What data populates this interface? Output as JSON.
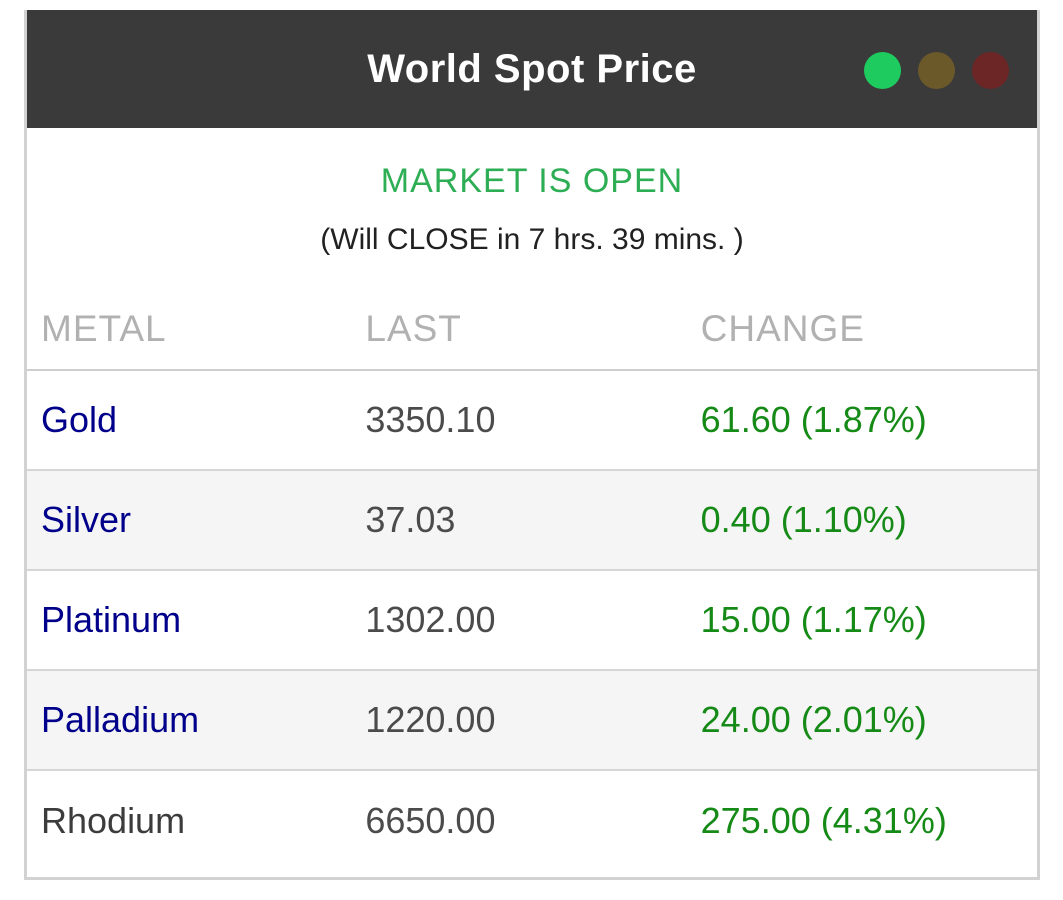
{
  "widget": {
    "title": "World Spot Price",
    "status_lights": [
      {
        "name": "open-light",
        "color": "#1ecb5f"
      },
      {
        "name": "caution-light",
        "color": "#6b592a"
      },
      {
        "name": "closed-light",
        "color": "#6c2626"
      }
    ],
    "status": {
      "market_state": "MARKET IS OPEN",
      "close_info": "(Will CLOSE in 7 hrs. 39 mins. )"
    },
    "table": {
      "columns": [
        "METAL",
        "LAST",
        "CHANGE"
      ],
      "rows": [
        {
          "metal": "Gold",
          "last": "3350.10",
          "change": "61.60 (1.87%)",
          "link": true
        },
        {
          "metal": "Silver",
          "last": "37.03",
          "change": "0.40 (1.10%)",
          "link": true
        },
        {
          "metal": "Platinum",
          "last": "1302.00",
          "change": "15.00 (1.17%)",
          "link": true
        },
        {
          "metal": "Palladium",
          "last": "1220.00",
          "change": "24.00 (2.01%)",
          "link": true
        },
        {
          "metal": "Rhodium",
          "last": "6650.00",
          "change": "275.00 (4.31%)",
          "link": false
        }
      ]
    },
    "colors": {
      "titlebar_bg": "#3a3a3a",
      "title_text": "#ffffff",
      "market_open_green": "#2eae54",
      "change_green": "#168a16",
      "metal_link_navy": "#00008b",
      "column_header_gray": "#b1b1b1",
      "row_stripe": "#f5f5f5",
      "widget_border": "#d2d2d2"
    }
  }
}
